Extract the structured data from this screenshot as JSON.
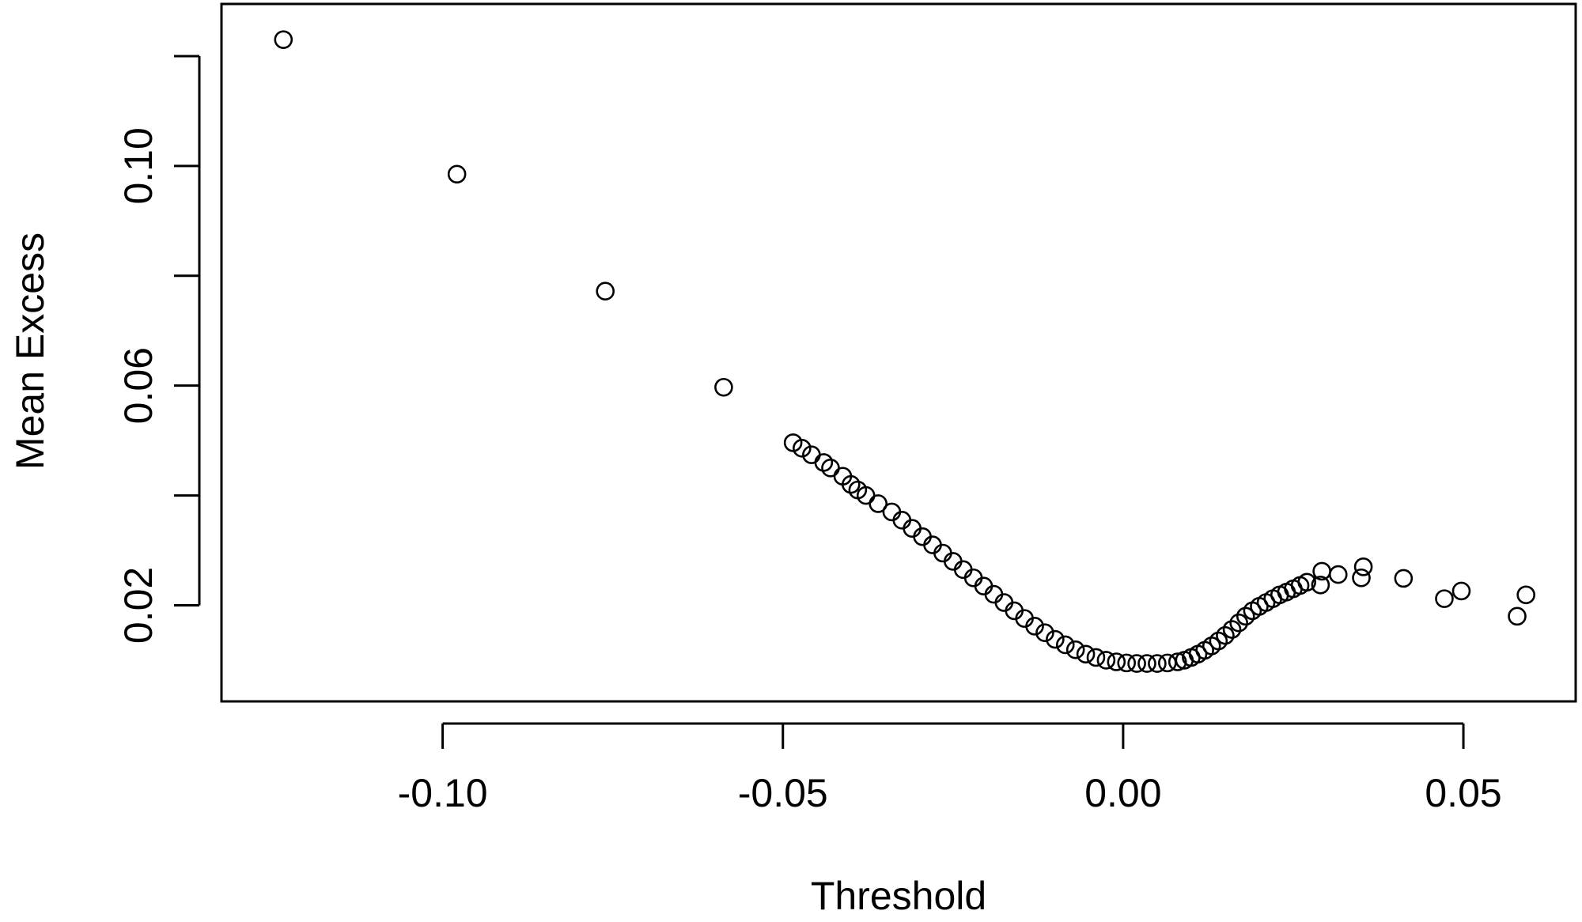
{
  "chart_data": {
    "type": "scatter",
    "title": "",
    "xlabel": "Threshold",
    "ylabel": "Mean Excess",
    "xlim": [
      -0.1325,
      0.0665
    ],
    "ylim": [
      0.0025,
      0.1295
    ],
    "xticks": [
      -0.1,
      -0.05,
      0.0,
      0.05
    ],
    "xtick_labels": [
      "-0.10",
      "-0.05",
      "0.00",
      "0.05"
    ],
    "yticks": [
      0.02,
      0.04,
      0.06,
      0.08,
      0.1,
      0.12
    ],
    "ytick_labels": [
      "0.02",
      "",
      "0.06",
      "",
      "0.10",
      ""
    ],
    "marker": "open-circle",
    "color": "#000000",
    "grid": false,
    "legend": "none",
    "series": [
      {
        "x": [
          -0.1234,
          -0.0979,
          -0.0761,
          -0.0587,
          -0.0485,
          -0.0472,
          -0.0458,
          -0.044,
          -0.043,
          -0.0412,
          -0.04,
          -0.039,
          -0.0378,
          -0.036,
          -0.034,
          -0.0325,
          -0.031,
          -0.0295,
          -0.028,
          -0.0265,
          -0.025,
          -0.0235,
          -0.022,
          -0.0205,
          -0.019,
          -0.0175,
          -0.016,
          -0.0145,
          -0.013,
          -0.0115,
          -0.01,
          -0.0085,
          -0.007,
          -0.0055,
          -0.004,
          -0.0025,
          -0.001,
          0.0005,
          0.002,
          0.0035,
          0.005,
          0.0065,
          0.008,
          0.009,
          0.01,
          0.011,
          0.012,
          0.013,
          0.014,
          0.015,
          0.016,
          0.017,
          0.018,
          0.019,
          0.02,
          0.021,
          0.022,
          0.023,
          0.024,
          0.025,
          0.026,
          0.027,
          0.029,
          0.0292,
          0.0316,
          0.035,
          0.0353,
          0.0412,
          0.0472,
          0.0497,
          0.0579,
          0.0592
        ],
        "y": [
          0.123,
          0.0985,
          0.0772,
          0.0597,
          0.0496,
          0.0486,
          0.0474,
          0.046,
          0.045,
          0.0435,
          0.042,
          0.041,
          0.04,
          0.0385,
          0.037,
          0.0355,
          0.034,
          0.0325,
          0.031,
          0.0295,
          0.028,
          0.0265,
          0.025,
          0.0235,
          0.022,
          0.0205,
          0.019,
          0.0176,
          0.0162,
          0.015,
          0.0138,
          0.0128,
          0.0119,
          0.0111,
          0.0105,
          0.01,
          0.0097,
          0.0095,
          0.0094,
          0.0094,
          0.0094,
          0.0095,
          0.0097,
          0.01,
          0.0105,
          0.0111,
          0.0118,
          0.0126,
          0.0135,
          0.0145,
          0.0156,
          0.0168,
          0.018,
          0.019,
          0.0198,
          0.0205,
          0.0212,
          0.0219,
          0.0224,
          0.023,
          0.0236,
          0.0242,
          0.0237,
          0.0262,
          0.0256,
          0.025,
          0.027,
          0.0249,
          0.0212,
          0.0226,
          0.018,
          0.0219
        ]
      }
    ]
  }
}
